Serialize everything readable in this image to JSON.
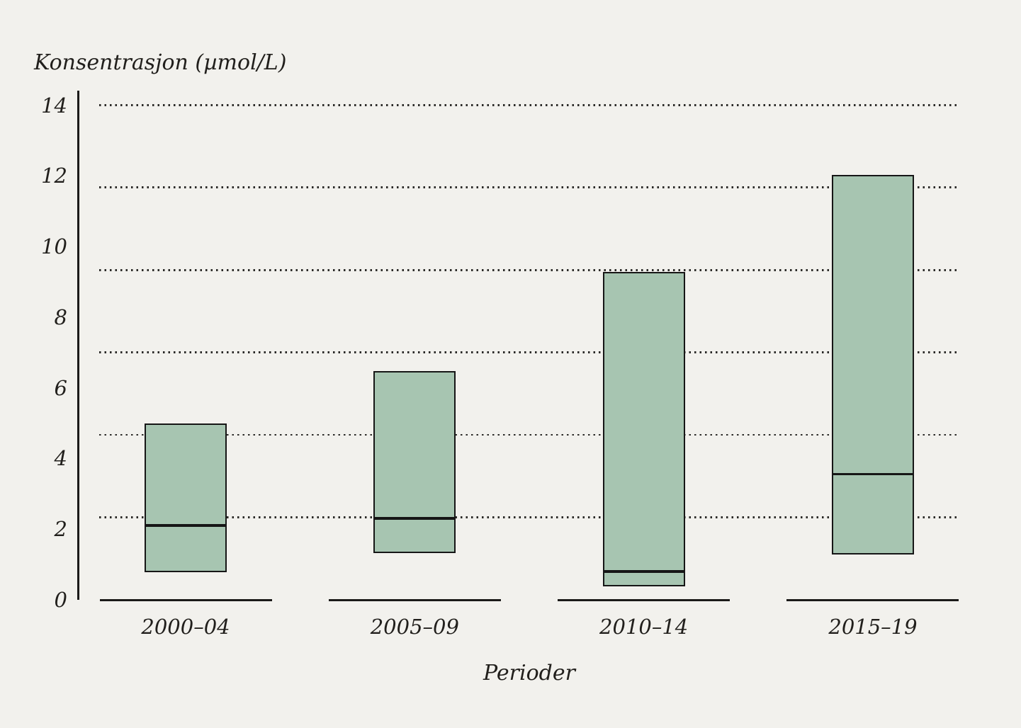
{
  "figure": {
    "background_color": "#f2f1ed",
    "text_color": "#211f1c"
  },
  "chart_data": {
    "type": "boxplot",
    "title": "",
    "y_axis_title": "Konsentrasjon (µmol/L)",
    "xlabel": "Perioder",
    "ylabel": "Konsentrasjon (µmol/L)",
    "categories": [
      "2000–04",
      "2005–09",
      "2010–14",
      "2015–19"
    ],
    "series": [
      {
        "category": "2000–04",
        "low": 0.8,
        "median": 2.1,
        "high": 4.95
      },
      {
        "category": "2005–09",
        "low": 1.35,
        "median": 2.3,
        "high": 6.45
      },
      {
        "category": "2010–14",
        "low": 0.4,
        "median": 0.8,
        "high": 9.25
      },
      {
        "category": "2015–19",
        "low": 1.3,
        "median": 3.55,
        "high": 12.0
      }
    ],
    "ylim": [
      0,
      14
    ],
    "yticks": [
      0,
      2,
      4,
      6,
      8,
      10,
      12,
      14
    ],
    "gridline_values": [
      2.33,
      4.67,
      7,
      9.33,
      11.67,
      14
    ],
    "grid_style": "dotted",
    "legend_position": "none",
    "colors": {
      "box_fill": "#a7c5b1",
      "box_border": "#161616",
      "median_line": "#161616",
      "axis_line": "#1b1a19",
      "grid_dot": "#2b2a28"
    }
  }
}
